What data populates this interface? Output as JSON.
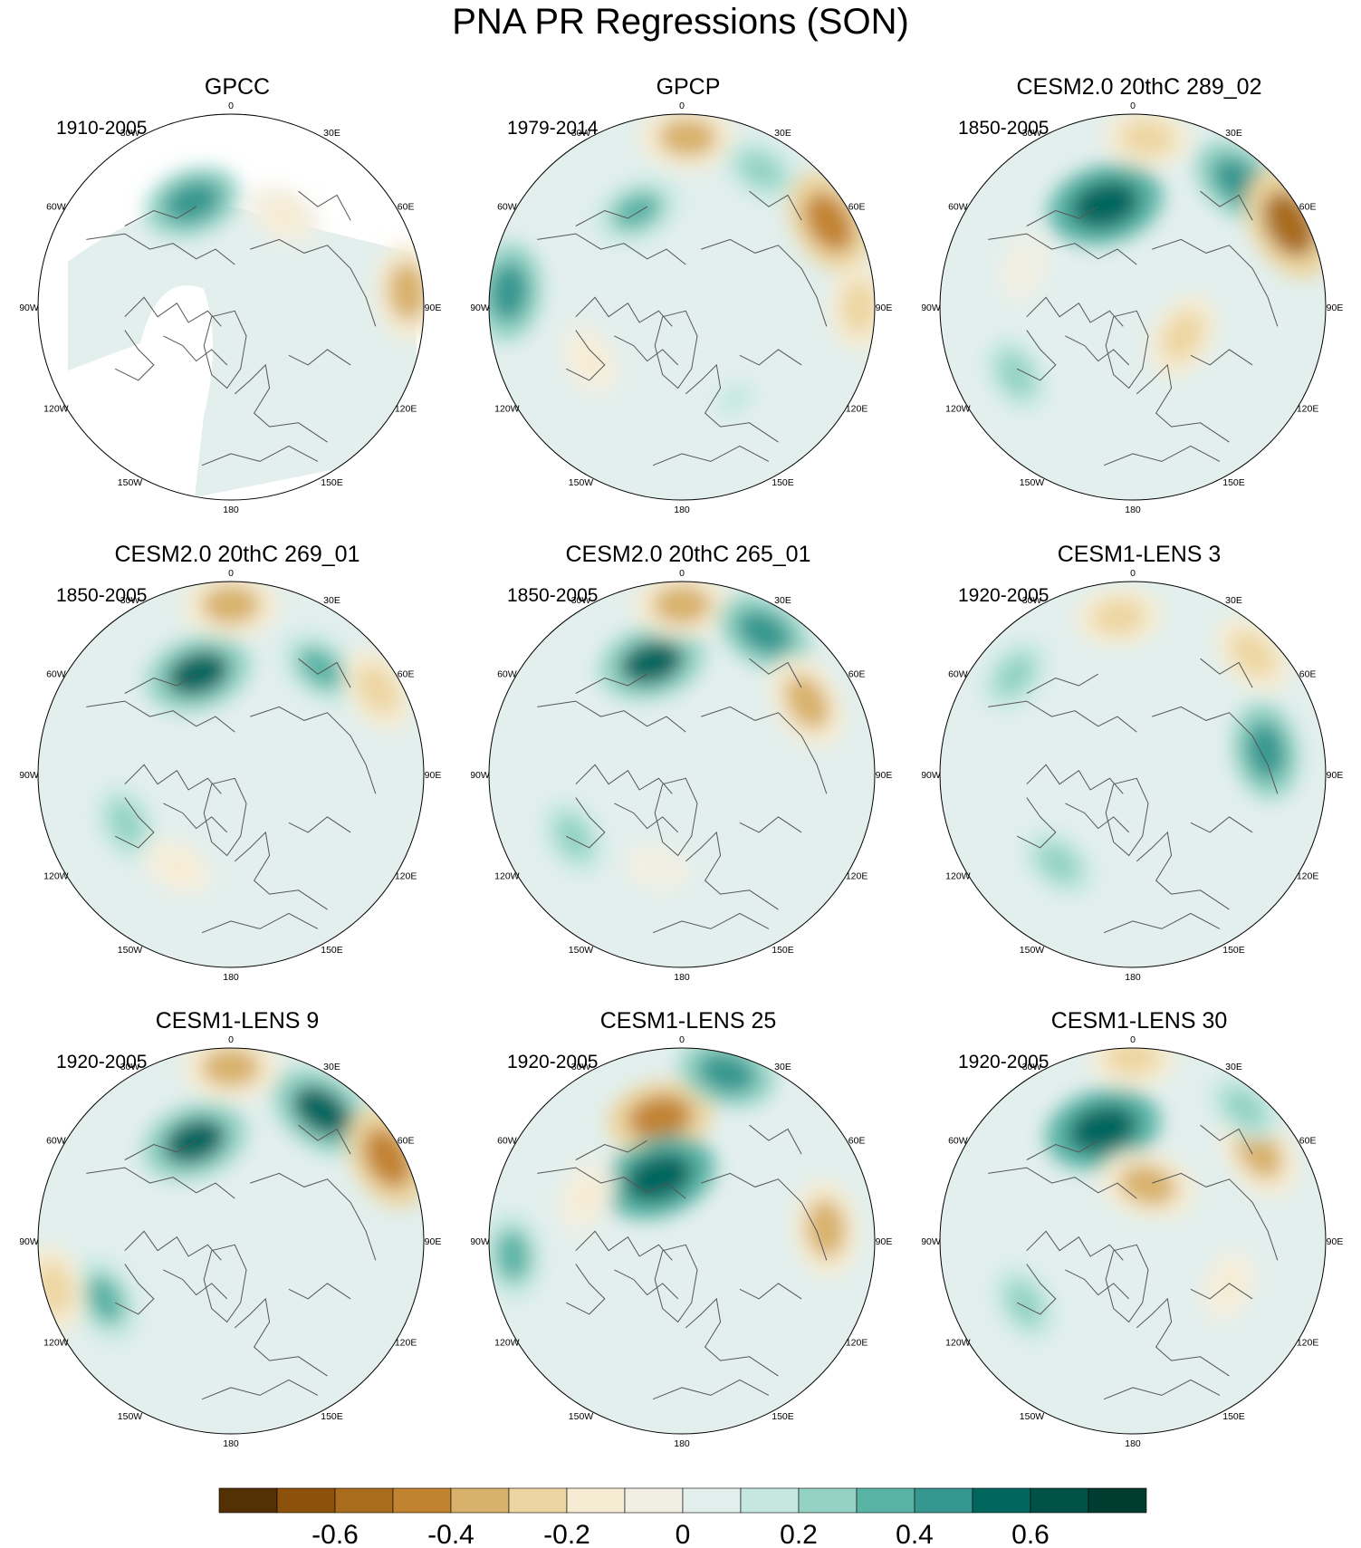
{
  "title": "PNA PR Regressions (SON)",
  "panels": [
    {
      "id": "gpcc",
      "title": "GPCC",
      "years": "1910-2005",
      "missing_ocean": true,
      "blobs": [
        {
          "lon": 95,
          "r": 0.92,
          "v": -0.4
        },
        {
          "lon": 150,
          "r": 0.55,
          "v": -0.2
        },
        {
          "lon": 200,
          "r": 0.58,
          "v": 0.4
        }
      ]
    },
    {
      "id": "gpcp",
      "title": "GPCP",
      "years": "1979-2014",
      "blobs": [
        {
          "lon": 178,
          "r": 0.88,
          "v": -0.4
        },
        {
          "lon": 205,
          "r": 0.55,
          "v": 0.3
        },
        {
          "lon": 150,
          "r": 0.82,
          "v": 0.2
        },
        {
          "lon": 120,
          "r": 0.88,
          "v": -0.5
        },
        {
          "lon": 265,
          "r": 0.9,
          "v": 0.4
        },
        {
          "lon": 90,
          "r": 0.92,
          "v": -0.3
        },
        {
          "lon": 300,
          "r": 0.55,
          "v": -0.2
        },
        {
          "lon": 30,
          "r": 0.55,
          "v": 0.1
        }
      ]
    },
    {
      "id": "cesm2-289",
      "title": "CESM2.0 20thC 289_02",
      "years": "1850-2005",
      "blobs": [
        {
          "lon": 195,
          "r": 0.55,
          "v": 0.6
        },
        {
          "lon": 175,
          "r": 0.88,
          "v": -0.3
        },
        {
          "lon": 140,
          "r": 0.85,
          "v": 0.4
        },
        {
          "lon": 118,
          "r": 0.92,
          "v": -0.6
        },
        {
          "lon": 250,
          "r": 0.6,
          "v": -0.1
        },
        {
          "lon": 60,
          "r": 0.3,
          "v": -0.3
        },
        {
          "lon": 300,
          "r": 0.7,
          "v": 0.2
        }
      ]
    },
    {
      "id": "cesm2-269",
      "title": "CESM2.0 20thC 269_01",
      "years": "1850-2005",
      "blobs": [
        {
          "lon": 198,
          "r": 0.55,
          "v": 0.5
        },
        {
          "lon": 180,
          "r": 0.88,
          "v": -0.4
        },
        {
          "lon": 140,
          "r": 0.72,
          "v": 0.3
        },
        {
          "lon": 120,
          "r": 0.88,
          "v": -0.3
        },
        {
          "lon": 295,
          "r": 0.6,
          "v": 0.2
        },
        {
          "lon": 330,
          "r": 0.55,
          "v": -0.2
        }
      ]
    },
    {
      "id": "cesm2-265",
      "title": "CESM2.0 20thC 265_01",
      "years": "1850-2005",
      "blobs": [
        {
          "lon": 195,
          "r": 0.6,
          "v": 0.5
        },
        {
          "lon": 180,
          "r": 0.88,
          "v": -0.4
        },
        {
          "lon": 150,
          "r": 0.85,
          "v": 0.4
        },
        {
          "lon": 120,
          "r": 0.75,
          "v": -0.4
        },
        {
          "lon": 300,
          "r": 0.65,
          "v": 0.2
        },
        {
          "lon": 345,
          "r": 0.5,
          "v": -0.1
        }
      ]
    },
    {
      "id": "lens3",
      "title": "CESM1-LENS 3",
      "years": "1920-2005",
      "blobs": [
        {
          "lon": 185,
          "r": 0.82,
          "v": -0.3
        },
        {
          "lon": 135,
          "r": 0.88,
          "v": -0.3
        },
        {
          "lon": 100,
          "r": 0.7,
          "v": 0.4
        },
        {
          "lon": 320,
          "r": 0.6,
          "v": 0.2
        },
        {
          "lon": 230,
          "r": 0.8,
          "v": 0.2
        }
      ]
    },
    {
      "id": "lens9",
      "title": "CESM1-LENS 9",
      "years": "1920-2005",
      "blobs": [
        {
          "lon": 200,
          "r": 0.55,
          "v": 0.5
        },
        {
          "lon": 180,
          "r": 0.9,
          "v": -0.4
        },
        {
          "lon": 145,
          "r": 0.82,
          "v": 0.5
        },
        {
          "lon": 118,
          "r": 0.92,
          "v": -0.5
        },
        {
          "lon": 295,
          "r": 0.72,
          "v": 0.3
        },
        {
          "lon": 285,
          "r": 0.95,
          "v": -0.3
        }
      ]
    },
    {
      "id": "lens25",
      "title": "CESM1-LENS 25",
      "years": "1920-2005",
      "blobs": [
        {
          "lon": 190,
          "r": 0.65,
          "v": -0.5
        },
        {
          "lon": 200,
          "r": 0.35,
          "v": 0.6
        },
        {
          "lon": 165,
          "r": 0.9,
          "v": 0.4
        },
        {
          "lon": 95,
          "r": 0.75,
          "v": -0.4
        },
        {
          "lon": 275,
          "r": 0.88,
          "v": 0.3
        },
        {
          "lon": 245,
          "r": 0.55,
          "v": -0.2
        }
      ]
    },
    {
      "id": "lens30",
      "title": "CESM1-LENS 30",
      "years": "1920-2005",
      "blobs": [
        {
          "lon": 195,
          "r": 0.6,
          "v": 0.6
        },
        {
          "lon": 180,
          "r": 0.95,
          "v": -0.3
        },
        {
          "lon": 165,
          "r": 0.3,
          "v": -0.4
        },
        {
          "lon": 125,
          "r": 0.8,
          "v": -0.4
        },
        {
          "lon": 140,
          "r": 0.9,
          "v": 0.2
        },
        {
          "lon": 300,
          "r": 0.65,
          "v": 0.2
        },
        {
          "lon": 65,
          "r": 0.55,
          "v": -0.2
        }
      ]
    }
  ],
  "lon_labels": [
    {
      "text": "180",
      "lon": 180
    },
    {
      "text": "150E",
      "lon": 150
    },
    {
      "text": "120E",
      "lon": 120
    },
    {
      "text": "90E",
      "lon": 90
    },
    {
      "text": "60E",
      "lon": 60
    },
    {
      "text": "30E",
      "lon": 30
    },
    {
      "text": "0",
      "lon": 0
    },
    {
      "text": "30W",
      "lon": -30
    },
    {
      "text": "60W",
      "lon": -60
    },
    {
      "text": "90W",
      "lon": -90
    },
    {
      "text": "120W",
      "lon": -120
    },
    {
      "text": "150W",
      "lon": -150
    }
  ],
  "colorbar": {
    "colors": [
      "#543005",
      "#8c510a",
      "#a86c1c",
      "#c28330",
      "#d8b16a",
      "#ecd5a0",
      "#f6ecd3",
      "#f1efe3",
      "#e2efed",
      "#c4e8e0",
      "#93d2c4",
      "#5ab4a6",
      "#35978f",
      "#01665e",
      "#005146",
      "#003c30"
    ],
    "labels": [
      "-0.6",
      "-0.4",
      "-0.2",
      "0",
      "0.2",
      "0.4",
      "0.6"
    ]
  },
  "chart_data": {
    "type": "heatmap",
    "title": "PNA PR Regressions (SON)",
    "projection": "north polar stereographic",
    "panel_titles": [
      "GPCC",
      "GPCP",
      "CESM2.0 20thC 289_02",
      "CESM2.0 20thC 269_01",
      "CESM2.0 20thC 265_01",
      "CESM1-LENS 3",
      "CESM1-LENS 9",
      "CESM1-LENS 25",
      "CESM1-LENS 30"
    ],
    "periods": [
      "1910-2005",
      "1979-2014",
      "1850-2005",
      "1850-2005",
      "1850-2005",
      "1920-2005",
      "1920-2005",
      "1920-2005",
      "1920-2005"
    ],
    "colorbar_ticks": [
      -0.6,
      -0.4,
      -0.2,
      0,
      0.2,
      0.4,
      0.6
    ]
  }
}
